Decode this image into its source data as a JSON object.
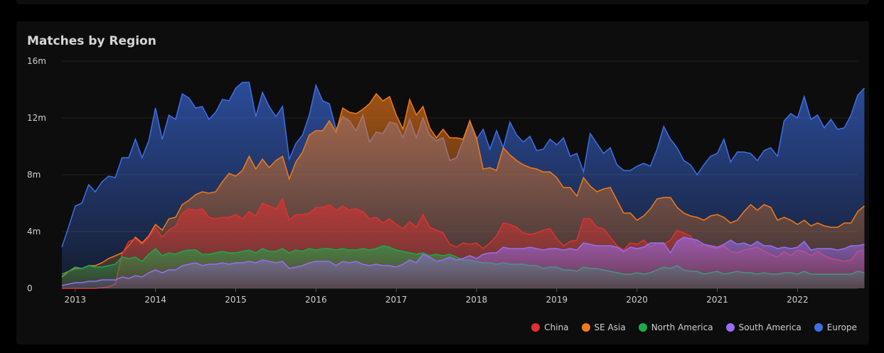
{
  "card": {
    "title": "Matches by Region"
  },
  "chart_data": {
    "type": "area",
    "title": "Matches by Region",
    "xlabel": "",
    "ylabel": "",
    "x_start": "2012-11",
    "x_interval": "month",
    "xlim": [
      "2012-11",
      "2022-10"
    ],
    "ylim": [
      0,
      16000000
    ],
    "yticks": [
      0,
      4000000,
      8000000,
      12000000,
      16000000
    ],
    "ytick_labels": [
      "0",
      "4m",
      "8m",
      "12m",
      "16m"
    ],
    "xticks": [
      "2013-01",
      "2014-01",
      "2015-01",
      "2016-01",
      "2017-01",
      "2018-01",
      "2019-01",
      "2020-01",
      "2021-01",
      "2022-01"
    ],
    "xtick_labels": [
      "2013",
      "2014",
      "2015",
      "2016",
      "2017",
      "2018",
      "2019",
      "2020",
      "2021",
      "2022"
    ],
    "grid": true,
    "legend_position": "bottom-right",
    "series": [
      {
        "name": "Europe",
        "color": "#3d6fe8",
        "values": [
          2.9,
          4.3,
          5.8,
          6.0,
          7.3,
          6.8,
          7.5,
          7.9,
          7.8,
          9.2,
          9.2,
          10.5,
          9.2,
          10.4,
          12.7,
          10.5,
          12.2,
          11.9,
          13.7,
          13.4,
          12.7,
          12.8,
          11.9,
          12.4,
          13.3,
          13.2,
          14.1,
          14.5,
          14.5,
          12.1,
          13.8,
          12.8,
          12.1,
          12.8,
          9.1,
          10.2,
          10.8,
          12.2,
          14.3,
          13.2,
          13.0,
          11.2,
          12.1,
          11.8,
          11.1,
          12.2,
          10.3,
          11.0,
          10.9,
          11.7,
          11.6,
          10.6,
          11.9,
          10.6,
          12.0,
          10.8,
          10.4,
          10.6,
          9.0,
          9.2,
          10.4,
          11.8,
          10.5,
          11.2,
          9.8,
          11.1,
          9.9,
          11.7,
          10.8,
          10.3,
          10.7,
          9.7,
          9.8,
          10.5,
          10.1,
          10.6,
          9.3,
          9.5,
          8.2,
          10.9,
          10.2,
          9.5,
          9.9,
          8.7,
          8.3,
          8.3,
          8.6,
          8.8,
          8.6,
          9.8,
          11.4,
          10.5,
          9.9,
          9.0,
          8.7,
          8.0,
          8.7,
          9.3,
          9.5,
          10.5,
          8.9,
          9.6,
          9.6,
          9.5,
          9.0,
          9.7,
          9.9,
          9.3,
          11.8,
          12.3,
          12.0,
          13.5,
          11.9,
          12.2,
          11.3,
          11.9,
          11.2,
          11.3,
          12.2,
          13.6,
          14.1
        ]
      },
      {
        "name": "SE Asia",
        "color": "#f07a1a",
        "values": [
          0.8,
          1.2,
          1.4,
          1.4,
          1.6,
          1.6,
          1.8,
          2.1,
          2.3,
          2.5,
          3.0,
          3.6,
          3.2,
          3.7,
          4.5,
          4.1,
          4.9,
          5.0,
          5.9,
          6.2,
          6.6,
          6.8,
          6.7,
          6.8,
          7.5,
          8.1,
          7.9,
          8.3,
          9.3,
          8.4,
          9.1,
          8.5,
          9.0,
          9.3,
          7.7,
          8.9,
          9.6,
          10.8,
          11.1,
          11.1,
          11.8,
          11.0,
          12.7,
          12.4,
          12.3,
          12.6,
          13.0,
          13.7,
          13.2,
          13.5,
          12.2,
          11.2,
          13.3,
          12.2,
          12.8,
          11.3,
          10.6,
          11.2,
          10.6,
          10.6,
          10.5,
          11.8,
          10.6,
          8.4,
          8.5,
          8.3,
          9.9,
          9.4,
          9.0,
          8.7,
          8.5,
          8.4,
          8.2,
          8.2,
          7.8,
          7.1,
          7.1,
          6.5,
          7.8,
          7.2,
          6.8,
          7.0,
          7.1,
          6.2,
          5.3,
          5.3,
          4.8,
          5.1,
          5.6,
          6.3,
          6.4,
          6.4,
          5.7,
          5.3,
          5.1,
          5.0,
          4.8,
          5.1,
          5.2,
          5.0,
          4.6,
          4.8,
          5.4,
          5.9,
          5.5,
          5.9,
          5.7,
          4.8,
          5.0,
          4.8,
          4.5,
          4.8,
          4.4,
          4.6,
          4.4,
          4.3,
          4.3,
          4.6,
          4.6,
          5.4,
          5.8
        ]
      },
      {
        "name": "China",
        "color": "#e03131",
        "values": [
          0,
          0,
          0,
          0,
          0,
          0,
          0.05,
          0.1,
          0.3,
          2.4,
          3.3,
          3.5,
          3.1,
          3.6,
          4.3,
          3.6,
          4.1,
          4.4,
          5.3,
          5.6,
          5.5,
          5.6,
          5.0,
          4.9,
          5.0,
          5.0,
          5.2,
          4.9,
          5.4,
          5.1,
          6.0,
          5.8,
          5.6,
          6.3,
          4.8,
          5.2,
          5.2,
          5.3,
          5.7,
          5.7,
          5.9,
          5.5,
          5.8,
          5.5,
          5.6,
          5.4,
          4.9,
          5.0,
          4.6,
          4.9,
          4.5,
          4.2,
          4.7,
          4.3,
          5.2,
          4.3,
          4.1,
          3.9,
          3.1,
          2.9,
          3.2,
          3.1,
          3.2,
          2.8,
          3.2,
          3.7,
          4.6,
          4.5,
          4.3,
          3.9,
          3.8,
          3.9,
          4.1,
          4.2,
          3.5,
          3.0,
          3.3,
          3.4,
          4.9,
          4.9,
          4.3,
          4.2,
          3.6,
          3.0,
          2.7,
          3.2,
          3.1,
          3.4,
          2.9,
          3.2,
          3.1,
          3.4,
          4.1,
          3.9,
          3.7,
          3.0,
          3.1,
          2.9,
          2.8,
          3.0,
          2.6,
          2.5,
          2.7,
          2.8,
          2.9,
          2.6,
          2.4,
          2.2,
          2.6,
          2.3,
          2.7,
          2.6,
          2.3,
          2.6,
          2.3,
          2.1,
          2.0,
          1.9,
          2.0,
          2.6,
          2.7
        ]
      },
      {
        "name": "North America",
        "color": "#1fa84a",
        "values": [
          1.0,
          1.2,
          1.5,
          1.4,
          1.6,
          1.5,
          1.5,
          1.6,
          1.7,
          2.2,
          2.1,
          2.2,
          1.9,
          2.4,
          2.8,
          2.3,
          2.5,
          2.4,
          2.6,
          2.7,
          2.7,
          2.4,
          2.4,
          2.5,
          2.6,
          2.5,
          2.5,
          2.6,
          2.7,
          2.5,
          2.8,
          2.6,
          2.6,
          2.8,
          2.5,
          2.7,
          2.6,
          2.8,
          2.7,
          2.8,
          2.8,
          2.7,
          2.8,
          2.7,
          2.7,
          2.8,
          2.7,
          2.8,
          3.0,
          2.9,
          2.7,
          2.6,
          2.5,
          2.4,
          2.5,
          2.3,
          2.4,
          2.3,
          2.4,
          2.2,
          2.0,
          2.0,
          1.9,
          1.8,
          1.8,
          1.7,
          1.8,
          1.7,
          1.7,
          1.7,
          1.6,
          1.6,
          1.4,
          1.5,
          1.5,
          1.3,
          1.3,
          1.2,
          1.5,
          1.4,
          1.4,
          1.3,
          1.2,
          1.1,
          1.0,
          1.0,
          1.1,
          1.0,
          1.1,
          1.3,
          1.5,
          1.4,
          1.6,
          1.3,
          1.2,
          1.2,
          1.0,
          1.1,
          1.2,
          1.0,
          1.1,
          1.2,
          1.1,
          1.1,
          1.0,
          1.1,
          1.0,
          1.0,
          1.1,
          1.1,
          1.0,
          1.2,
          1.0,
          1.0,
          1.0,
          1.0,
          1.0,
          1.0,
          1.0,
          1.2,
          1.1
        ]
      },
      {
        "name": "South America",
        "color": "#9a6cf2",
        "values": [
          0.2,
          0.3,
          0.4,
          0.4,
          0.5,
          0.5,
          0.6,
          0.6,
          0.6,
          0.8,
          0.7,
          0.9,
          0.8,
          1.1,
          1.3,
          1.1,
          1.3,
          1.3,
          1.6,
          1.7,
          1.8,
          1.6,
          1.7,
          1.7,
          1.8,
          1.7,
          1.8,
          1.8,
          1.9,
          1.8,
          2.0,
          1.9,
          1.8,
          1.9,
          1.4,
          1.5,
          1.6,
          1.8,
          1.9,
          1.9,
          1.9,
          1.6,
          1.9,
          1.8,
          1.9,
          1.7,
          1.6,
          1.7,
          1.6,
          1.6,
          1.5,
          1.7,
          2.0,
          1.8,
          2.4,
          2.2,
          1.9,
          2.0,
          2.2,
          2.0,
          2.1,
          2.3,
          2.1,
          2.4,
          2.5,
          2.5,
          2.9,
          2.8,
          2.8,
          2.8,
          2.9,
          2.8,
          2.7,
          2.8,
          2.8,
          2.7,
          2.8,
          2.7,
          3.2,
          3.1,
          3.0,
          3.0,
          3.0,
          2.9,
          2.6,
          2.9,
          2.8,
          2.9,
          3.2,
          3.2,
          3.2,
          2.5,
          3.3,
          3.6,
          3.5,
          3.4,
          3.1,
          3.0,
          2.9,
          3.1,
          3.4,
          3.1,
          3.2,
          3.0,
          3.3,
          3.0,
          3.0,
          2.8,
          2.9,
          2.8,
          2.9,
          3.3,
          2.7,
          2.8,
          2.8,
          2.8,
          2.7,
          2.8,
          3.0,
          3.0,
          3.1
        ]
      }
    ]
  }
}
